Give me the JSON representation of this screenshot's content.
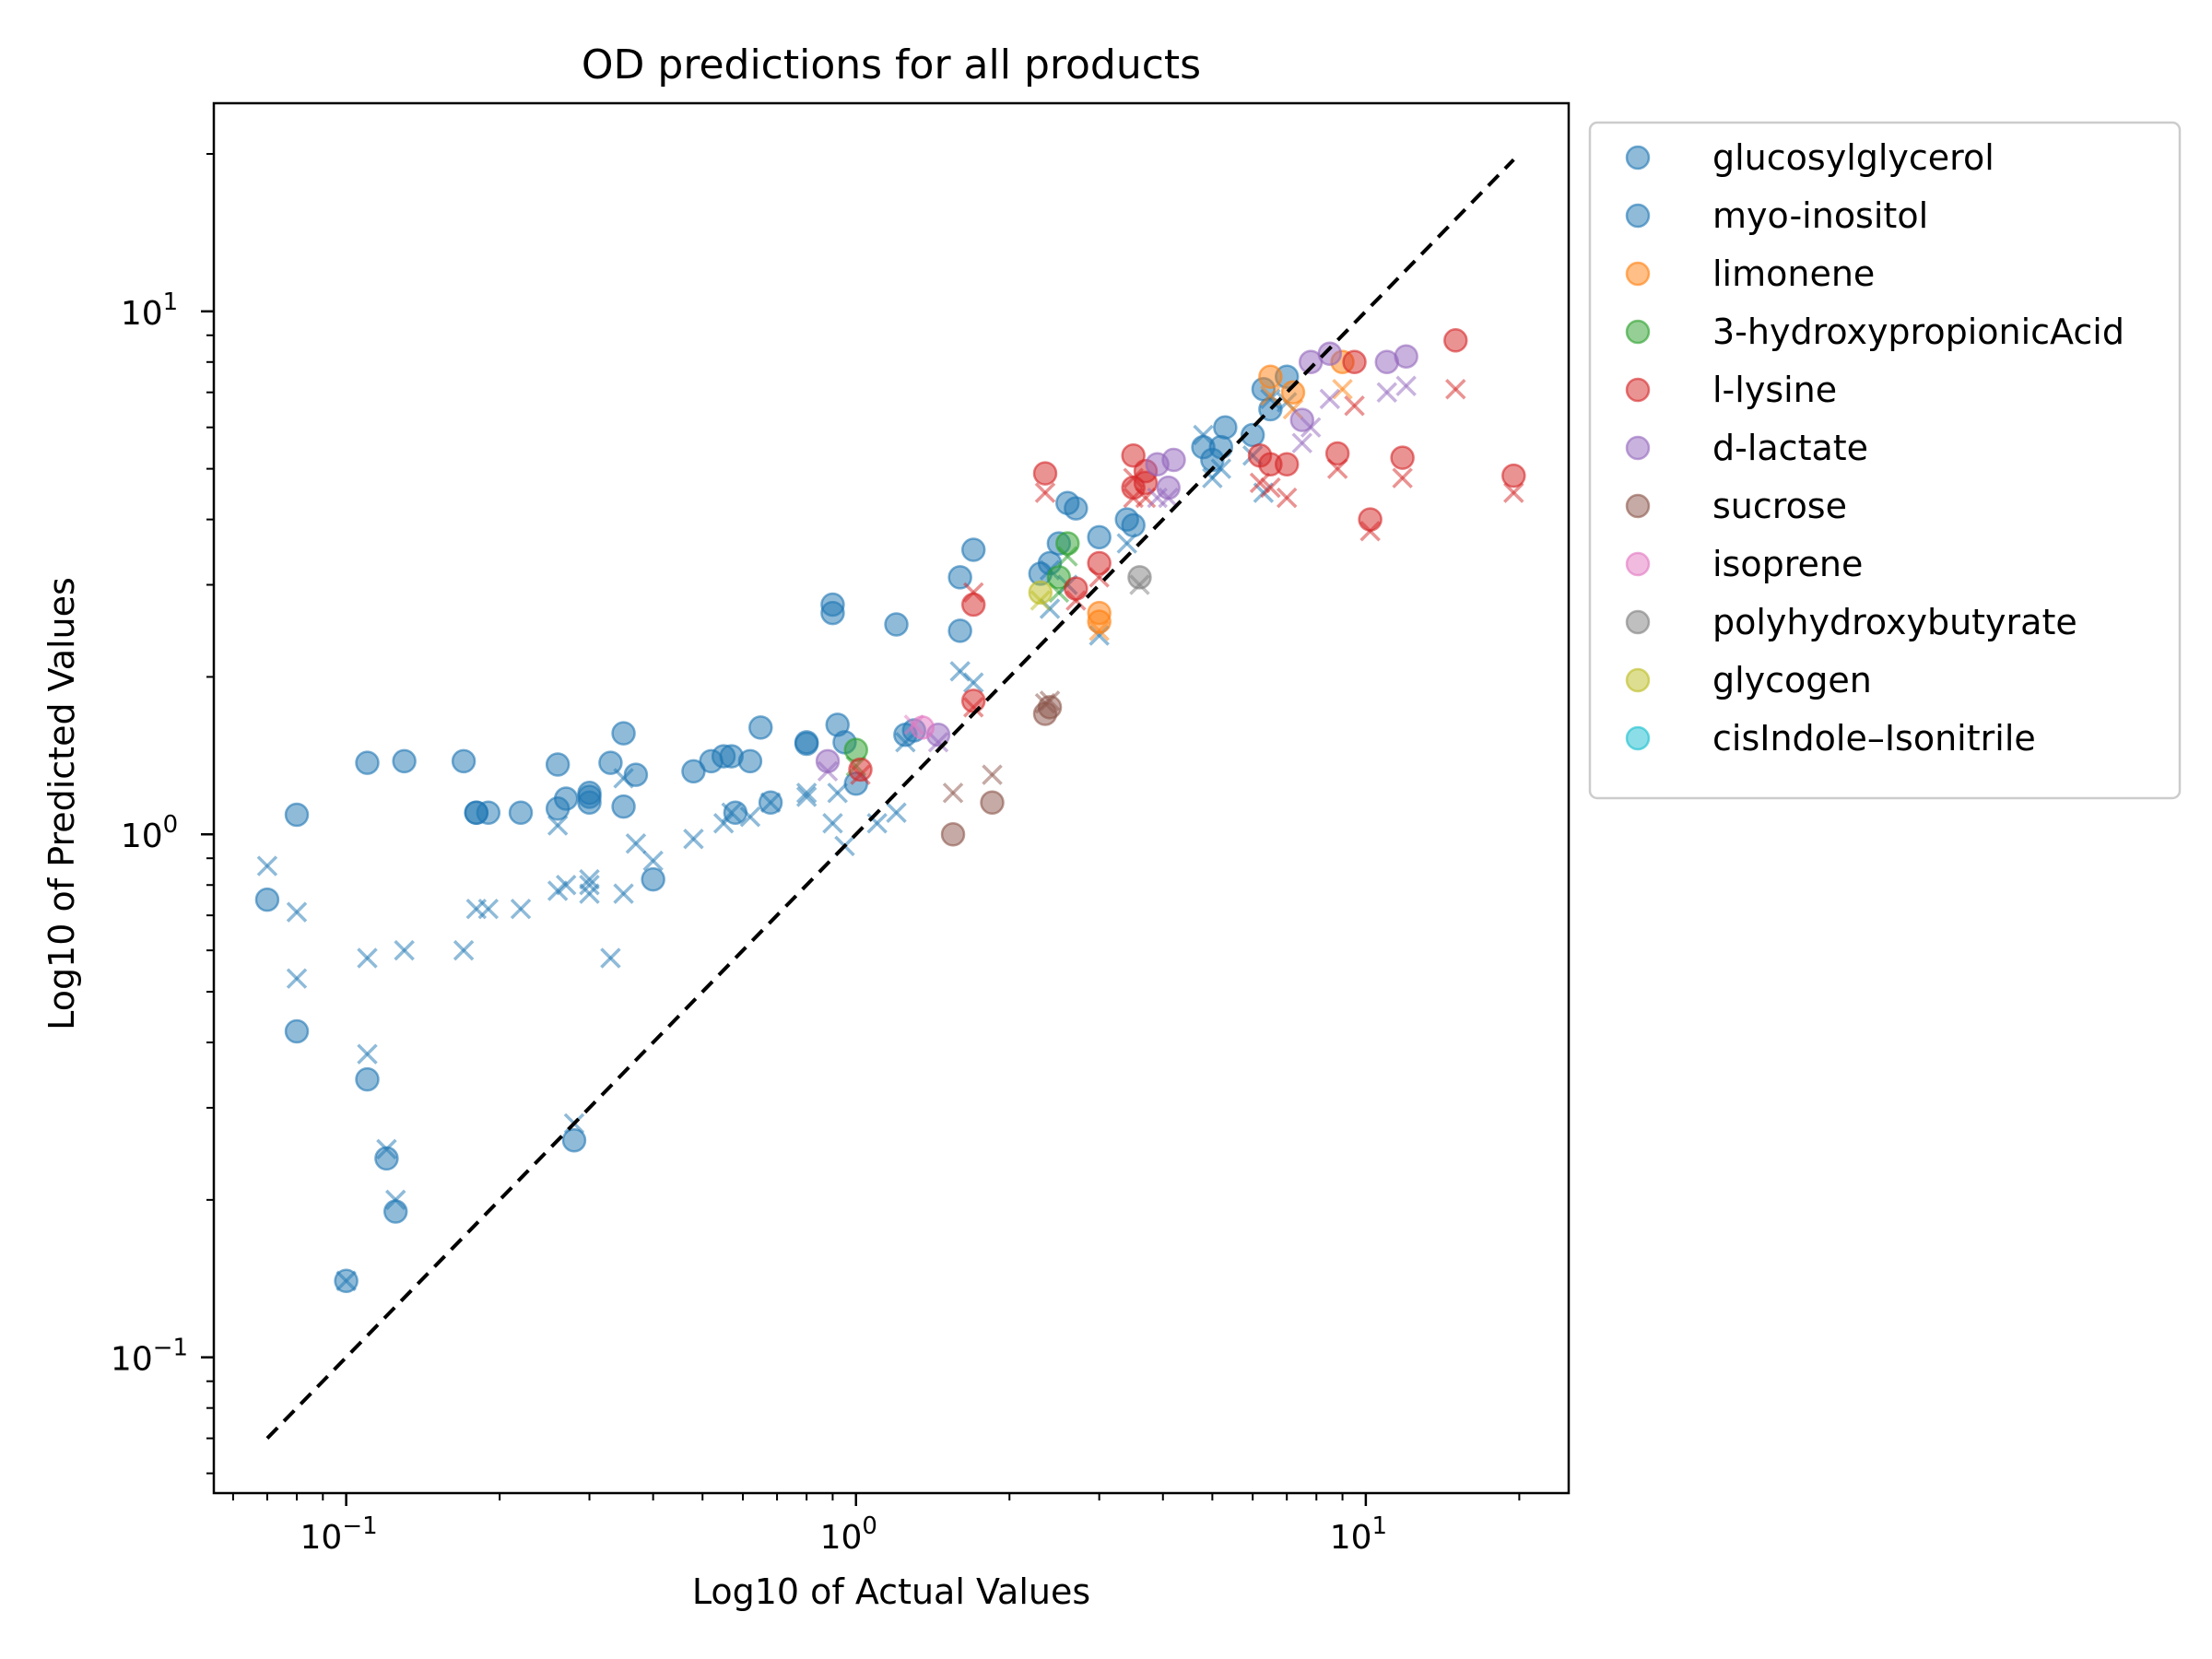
{
  "chart_data": {
    "type": "scatter",
    "title": "OD predictions for all products",
    "xlabel": "Log10 of Actual Values",
    "ylabel": "Log10 of Predicted Values",
    "xscale": "log",
    "yscale": "log",
    "xlim": [
      0.055,
      25
    ],
    "ylim": [
      0.055,
      25
    ],
    "xticks": [
      {
        "value": 0.1,
        "base": "10",
        "exp": "−1"
      },
      {
        "value": 1,
        "base": "10",
        "exp": "0"
      },
      {
        "value": 10,
        "base": "10",
        "exp": "1"
      }
    ],
    "yticks": [
      {
        "value": 0.1,
        "base": "10",
        "exp": "−1"
      },
      {
        "value": 1,
        "base": "10",
        "exp": "0"
      },
      {
        "value": 10,
        "base": "10",
        "exp": "1"
      }
    ],
    "grid": false,
    "legend_placement": "outside-top-right",
    "marker_legend": {
      "o": "circle",
      "x": "cross"
    },
    "reference_line": {
      "style": "dashed",
      "color": "#000000",
      "x": [
        0.07,
        19.5
      ],
      "y": [
        0.07,
        19.5
      ]
    },
    "series": [
      {
        "name": "glucosylglycerol",
        "color": "#1f77b4",
        "circles": [
          [
            0.07,
            0.75
          ],
          [
            0.08,
            1.09
          ],
          [
            0.08,
            0.42
          ],
          [
            0.11,
            1.37
          ],
          [
            0.11,
            0.34
          ],
          [
            0.12,
            0.24
          ],
          [
            0.125,
            0.19
          ],
          [
            0.13,
            1.38
          ],
          [
            0.17,
            1.38
          ],
          [
            0.18,
            1.1
          ],
          [
            0.19,
            1.1
          ],
          [
            0.22,
            1.1
          ],
          [
            0.26,
            1.12
          ],
          [
            0.26,
            1.36
          ],
          [
            0.27,
            1.17
          ],
          [
            0.3,
            1.18
          ],
          [
            0.3,
            1.15
          ],
          [
            0.33,
            1.37
          ],
          [
            0.35,
            1.56
          ],
          [
            0.35,
            1.13
          ],
          [
            0.37,
            1.3
          ],
          [
            0.28,
            0.26
          ],
          [
            0.1,
            0.14
          ],
          [
            0.4,
            0.82
          ],
          [
            0.48,
            1.32
          ],
          [
            0.52,
            1.38
          ],
          [
            0.55,
            1.41
          ],
          [
            0.57,
            1.41
          ],
          [
            0.62,
            1.38
          ],
          [
            0.65,
            1.6
          ],
          [
            0.68,
            1.15
          ],
          [
            0.8,
            1.49
          ],
          [
            0.9,
            2.75
          ],
          [
            0.9,
            2.65
          ],
          [
            0.92,
            1.62
          ],
          [
            0.95,
            1.5
          ],
          [
            1.0,
            1.25
          ],
          [
            1.2,
            2.52
          ],
          [
            1.6,
            3.1
          ],
          [
            1.7,
            3.5
          ],
          [
            1.6,
            2.45
          ],
          [
            2.3,
            3.15
          ],
          [
            2.5,
            3.6
          ],
          [
            2.6,
            4.3
          ],
          [
            2.7,
            4.2
          ],
          [
            3.0,
            3.7
          ],
          [
            3.4,
            4.0
          ],
          [
            3.5,
            3.9
          ],
          [
            4.8,
            5.5
          ],
          [
            5.0,
            5.2
          ],
          [
            5.3,
            6.0
          ],
          [
            6.3,
            7.1
          ],
          [
            6.5,
            6.5
          ],
          [
            7.0,
            7.5
          ]
        ],
        "crosses": [
          [
            0.07,
            0.87
          ],
          [
            0.08,
            0.71
          ],
          [
            0.08,
            0.53
          ],
          [
            0.11,
            0.58
          ],
          [
            0.11,
            0.38
          ],
          [
            0.12,
            0.25
          ],
          [
            0.125,
            0.2
          ],
          [
            0.13,
            0.6
          ],
          [
            0.17,
            0.6
          ],
          [
            0.18,
            0.72
          ],
          [
            0.19,
            0.72
          ],
          [
            0.22,
            0.72
          ],
          [
            0.26,
            0.78
          ],
          [
            0.26,
            1.04
          ],
          [
            0.27,
            0.8
          ],
          [
            0.3,
            0.8
          ],
          [
            0.3,
            0.77
          ],
          [
            0.33,
            0.58
          ],
          [
            0.35,
            1.28
          ],
          [
            0.35,
            0.77
          ],
          [
            0.37,
            0.96
          ],
          [
            0.28,
            0.28
          ],
          [
            0.1,
            0.14
          ],
          [
            0.4,
            0.89
          ],
          [
            0.48,
            0.98
          ],
          [
            0.55,
            1.05
          ],
          [
            0.57,
            1.1
          ],
          [
            0.62,
            1.08
          ],
          [
            0.68,
            1.15
          ],
          [
            0.8,
            1.18
          ],
          [
            0.9,
            1.05
          ],
          [
            0.92,
            1.2
          ],
          [
            0.95,
            0.95
          ],
          [
            1.1,
            1.05
          ],
          [
            1.2,
            1.1
          ],
          [
            1.6,
            2.05
          ],
          [
            1.7,
            1.95
          ],
          [
            2.4,
            2.7
          ],
          [
            2.6,
            3.0
          ],
          [
            3.0,
            2.4
          ],
          [
            3.4,
            3.6
          ],
          [
            4.8,
            5.8
          ],
          [
            5.0,
            4.8
          ],
          [
            6.3,
            4.5
          ],
          [
            6.5,
            6.8
          ],
          [
            7.0,
            6.7
          ]
        ]
      },
      {
        "name": "myo-inositol",
        "color": "#1f77b4",
        "circles": [
          [
            0.18,
            1.1
          ],
          [
            0.3,
            1.2
          ],
          [
            0.58,
            1.1
          ],
          [
            0.8,
            1.5
          ],
          [
            1.25,
            1.55
          ],
          [
            1.3,
            1.58
          ],
          [
            2.4,
            3.3
          ],
          [
            5.2,
            5.5
          ],
          [
            6.0,
            5.8
          ]
        ],
        "crosses": [
          [
            0.3,
            0.82
          ],
          [
            0.8,
            1.2
          ],
          [
            1.25,
            1.5
          ],
          [
            2.4,
            3.2
          ],
          [
            5.2,
            5.0
          ],
          [
            6.0,
            5.3
          ]
        ]
      },
      {
        "name": "limonene",
        "color": "#ff7f0e",
        "circles": [
          [
            3.0,
            2.65
          ],
          [
            3.0,
            2.55
          ],
          [
            6.5,
            7.5
          ],
          [
            7.2,
            7.0
          ],
          [
            9.0,
            8.0
          ]
        ],
        "crosses": [
          [
            3.0,
            2.45
          ],
          [
            6.5,
            6.9
          ],
          [
            7.2,
            6.5
          ],
          [
            9.0,
            7.1
          ]
        ]
      },
      {
        "name": "3-hydroxypropionicAcid",
        "color": "#2ca02c",
        "circles": [
          [
            1.0,
            1.45
          ],
          [
            2.5,
            3.1
          ],
          [
            2.6,
            3.6
          ]
        ],
        "crosses": [
          [
            1.0,
            1.35
          ],
          [
            2.5,
            2.9
          ],
          [
            2.6,
            3.4
          ]
        ]
      },
      {
        "name": "l-lysine",
        "color": "#d62728",
        "circles": [
          [
            1.02,
            1.33
          ],
          [
            1.7,
            1.8
          ],
          [
            1.7,
            2.75
          ],
          [
            2.35,
            4.9
          ],
          [
            2.7,
            2.95
          ],
          [
            3.0,
            3.3
          ],
          [
            3.5,
            5.3
          ],
          [
            3.5,
            4.6
          ],
          [
            3.7,
            4.7
          ],
          [
            3.7,
            4.95
          ],
          [
            6.2,
            5.3
          ],
          [
            6.5,
            5.1
          ],
          [
            7.0,
            5.1
          ],
          [
            8.8,
            5.35
          ],
          [
            9.5,
            8.0
          ],
          [
            10.2,
            4.0
          ],
          [
            11.8,
            5.25
          ],
          [
            15.0,
            8.8
          ],
          [
            19.5,
            4.85
          ]
        ],
        "crosses": [
          [
            1.02,
            1.3
          ],
          [
            1.7,
            1.75
          ],
          [
            1.7,
            2.9
          ],
          [
            2.35,
            4.5
          ],
          [
            2.7,
            2.8
          ],
          [
            3.0,
            3.1
          ],
          [
            3.5,
            4.8
          ],
          [
            3.5,
            4.4
          ],
          [
            3.7,
            4.4
          ],
          [
            6.2,
            4.7
          ],
          [
            6.5,
            4.6
          ],
          [
            7.0,
            4.4
          ],
          [
            8.8,
            5.0
          ],
          [
            9.5,
            6.6
          ],
          [
            10.2,
            3.8
          ],
          [
            11.8,
            4.8
          ],
          [
            15.0,
            7.1
          ],
          [
            19.5,
            4.5
          ]
        ]
      },
      {
        "name": "d-lactate",
        "color": "#9467bd",
        "circles": [
          [
            0.88,
            1.38
          ],
          [
            1.45,
            1.55
          ],
          [
            3.9,
            5.1
          ],
          [
            4.1,
            4.6
          ],
          [
            4.2,
            5.2
          ],
          [
            7.5,
            6.2
          ],
          [
            7.8,
            8.0
          ],
          [
            8.5,
            8.3
          ],
          [
            11.0,
            8.0
          ],
          [
            12.0,
            8.2
          ]
        ],
        "crosses": [
          [
            0.88,
            1.32
          ],
          [
            1.45,
            1.5
          ],
          [
            3.9,
            4.4
          ],
          [
            4.1,
            4.4
          ],
          [
            7.5,
            5.6
          ],
          [
            7.8,
            6.0
          ],
          [
            8.5,
            6.8
          ],
          [
            11.0,
            7.0
          ],
          [
            12.0,
            7.2
          ]
        ]
      },
      {
        "name": "sucrose",
        "color": "#8c564b",
        "circles": [
          [
            1.55,
            1.0
          ],
          [
            1.85,
            1.15
          ],
          [
            2.35,
            1.7
          ],
          [
            2.4,
            1.75
          ]
        ],
        "crosses": [
          [
            1.55,
            1.2
          ],
          [
            1.85,
            1.3
          ],
          [
            2.35,
            1.78
          ],
          [
            2.4,
            1.8
          ]
        ]
      },
      {
        "name": "isoprene",
        "color": "#e377c2",
        "circles": [
          [
            1.35,
            1.6
          ]
        ],
        "crosses": [
          [
            1.3,
            1.62
          ]
        ]
      },
      {
        "name": "polyhydroxybutyrate",
        "color": "#7f7f7f",
        "circles": [
          [
            3.6,
            3.1
          ]
        ],
        "crosses": [
          [
            3.6,
            3.0
          ]
        ]
      },
      {
        "name": "glycogen",
        "color": "#bcbd22",
        "circles": [
          [
            2.3,
            2.9
          ]
        ],
        "crosses": [
          [
            2.3,
            2.8
          ]
        ]
      },
      {
        "name": "cisIndole–Isonitrile",
        "color": "#17becf",
        "circles": [],
        "crosses": []
      }
    ]
  }
}
